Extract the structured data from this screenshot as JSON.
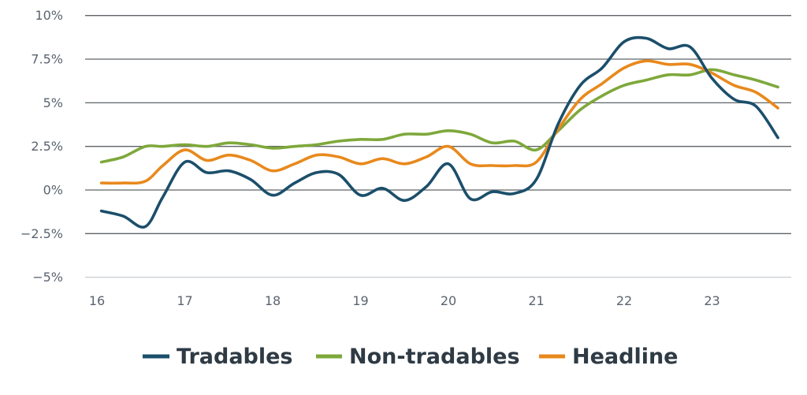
{
  "chart_data": {
    "type": "line",
    "title": "",
    "xlabel": "",
    "ylabel": "",
    "x_ticks": [
      {
        "value": 16,
        "label": "16"
      },
      {
        "value": 17,
        "label": "17"
      },
      {
        "value": 18,
        "label": "18"
      },
      {
        "value": 19,
        "label": "19"
      },
      {
        "value": 20,
        "label": "20"
      },
      {
        "value": 21,
        "label": "21"
      },
      {
        "value": 22,
        "label": "22"
      },
      {
        "value": 23,
        "label": "23"
      }
    ],
    "y_ticks": [
      {
        "value": 10,
        "label": "10%"
      },
      {
        "value": 7.5,
        "label": "7.5%"
      },
      {
        "value": 5,
        "label": "5%"
      },
      {
        "value": 2.5,
        "label": "2.5%"
      },
      {
        "value": 0,
        "label": "0%"
      },
      {
        "value": -2.5,
        "label": "−2.5%"
      },
      {
        "value": -5,
        "label": "−5%"
      }
    ],
    "xlim": [
      16,
      24
    ],
    "ylim": [
      -5,
      10
    ],
    "grid": true,
    "legend_position": "bottom",
    "series": [
      {
        "name": "Tradables",
        "color": "#1b4f6b",
        "points": [
          [
            16.05,
            -1.2
          ],
          [
            16.3,
            -1.5
          ],
          [
            16.55,
            -2.1
          ],
          [
            16.75,
            -0.4
          ],
          [
            17.0,
            1.6
          ],
          [
            17.25,
            1.0
          ],
          [
            17.5,
            1.1
          ],
          [
            17.75,
            0.6
          ],
          [
            18.0,
            -0.3
          ],
          [
            18.25,
            0.4
          ],
          [
            18.5,
            1.0
          ],
          [
            18.75,
            0.9
          ],
          [
            19.0,
            -0.3
          ],
          [
            19.25,
            0.1
          ],
          [
            19.5,
            -0.6
          ],
          [
            19.75,
            0.2
          ],
          [
            20.0,
            1.5
          ],
          [
            20.25,
            -0.5
          ],
          [
            20.5,
            -0.1
          ],
          [
            20.75,
            -0.2
          ],
          [
            21.0,
            0.6
          ],
          [
            21.25,
            3.8
          ],
          [
            21.5,
            6.0
          ],
          [
            21.75,
            7.0
          ],
          [
            22.0,
            8.5
          ],
          [
            22.25,
            8.7
          ],
          [
            22.5,
            8.1
          ],
          [
            22.75,
            8.2
          ],
          [
            23.0,
            6.4
          ],
          [
            23.25,
            5.2
          ],
          [
            23.5,
            4.8
          ],
          [
            23.75,
            3.0
          ]
        ]
      },
      {
        "name": "Non-tradables",
        "color": "#7ea83b",
        "points": [
          [
            16.05,
            1.6
          ],
          [
            16.3,
            1.9
          ],
          [
            16.55,
            2.5
          ],
          [
            16.75,
            2.5
          ],
          [
            17.0,
            2.6
          ],
          [
            17.25,
            2.5
          ],
          [
            17.5,
            2.7
          ],
          [
            17.75,
            2.6
          ],
          [
            18.0,
            2.4
          ],
          [
            18.25,
            2.5
          ],
          [
            18.5,
            2.6
          ],
          [
            18.75,
            2.8
          ],
          [
            19.0,
            2.9
          ],
          [
            19.25,
            2.9
          ],
          [
            19.5,
            3.2
          ],
          [
            19.75,
            3.2
          ],
          [
            20.0,
            3.4
          ],
          [
            20.25,
            3.2
          ],
          [
            20.5,
            2.7
          ],
          [
            20.75,
            2.8
          ],
          [
            21.0,
            2.3
          ],
          [
            21.25,
            3.4
          ],
          [
            21.5,
            4.6
          ],
          [
            21.75,
            5.4
          ],
          [
            22.0,
            6.0
          ],
          [
            22.25,
            6.3
          ],
          [
            22.5,
            6.6
          ],
          [
            22.75,
            6.6
          ],
          [
            23.0,
            6.9
          ],
          [
            23.25,
            6.6
          ],
          [
            23.5,
            6.3
          ],
          [
            23.75,
            5.9
          ]
        ]
      },
      {
        "name": "Headline",
        "color": "#e8891d",
        "points": [
          [
            16.05,
            0.4
          ],
          [
            16.3,
            0.4
          ],
          [
            16.55,
            0.5
          ],
          [
            16.75,
            1.4
          ],
          [
            17.0,
            2.3
          ],
          [
            17.25,
            1.7
          ],
          [
            17.5,
            2.0
          ],
          [
            17.75,
            1.7
          ],
          [
            18.0,
            1.1
          ],
          [
            18.25,
            1.5
          ],
          [
            18.5,
            2.0
          ],
          [
            18.75,
            1.9
          ],
          [
            19.0,
            1.5
          ],
          [
            19.25,
            1.8
          ],
          [
            19.5,
            1.5
          ],
          [
            19.75,
            1.9
          ],
          [
            20.0,
            2.5
          ],
          [
            20.25,
            1.5
          ],
          [
            20.5,
            1.4
          ],
          [
            20.75,
            1.4
          ],
          [
            21.0,
            1.6
          ],
          [
            21.25,
            3.5
          ],
          [
            21.5,
            5.2
          ],
          [
            21.75,
            6.1
          ],
          [
            22.0,
            7.0
          ],
          [
            22.25,
            7.4
          ],
          [
            22.5,
            7.2
          ],
          [
            22.75,
            7.2
          ],
          [
            23.0,
            6.7
          ],
          [
            23.25,
            6.0
          ],
          [
            23.5,
            5.6
          ],
          [
            23.75,
            4.7
          ]
        ]
      }
    ]
  }
}
